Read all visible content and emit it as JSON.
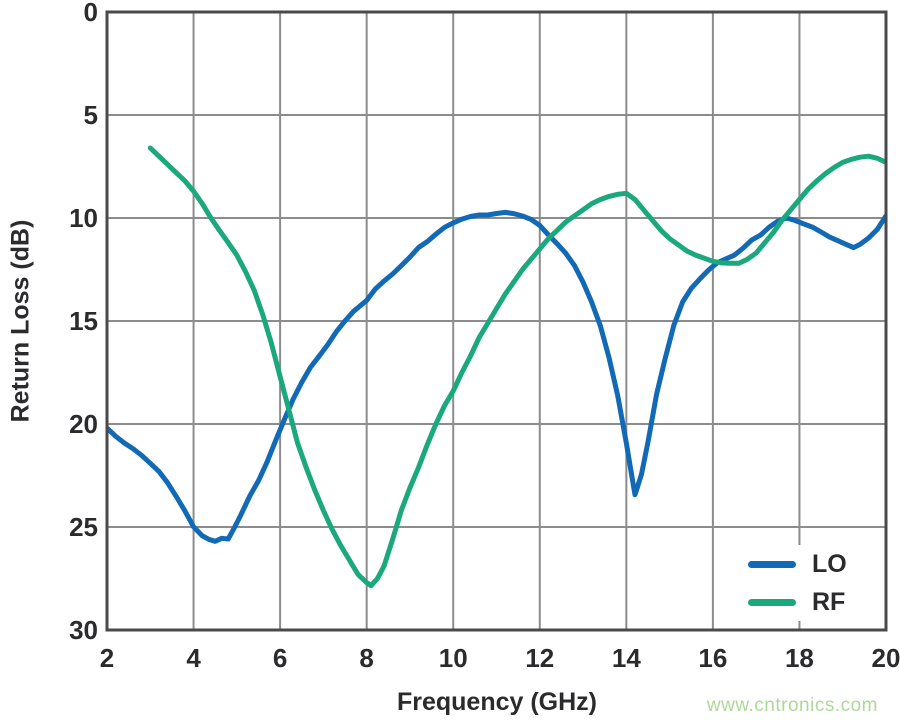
{
  "chart_data": {
    "type": "line",
    "title": "",
    "xlabel": "Frequency (GHz)",
    "ylabel": "Return Loss (dB)",
    "xlim": [
      2,
      20
    ],
    "ylim": [
      0,
      30
    ],
    "y_axis_inverted_downward": true,
    "x_ticks": [
      2,
      4,
      6,
      8,
      10,
      12,
      14,
      16,
      18,
      20
    ],
    "y_ticks": [
      0,
      5,
      10,
      15,
      20,
      25,
      30
    ],
    "grid": true,
    "legend_position": "lower right",
    "series": [
      {
        "name": "LO",
        "color": "#1269b5",
        "noisy_trace": true,
        "points": [
          [
            2.0,
            20.2
          ],
          [
            2.2,
            20.55
          ],
          [
            2.4,
            20.9
          ],
          [
            2.6,
            21.2
          ],
          [
            2.8,
            21.5
          ],
          [
            3.0,
            21.9
          ],
          [
            3.2,
            22.35
          ],
          [
            3.4,
            22.9
          ],
          [
            3.6,
            23.5
          ],
          [
            3.8,
            24.2
          ],
          [
            4.0,
            25.0
          ],
          [
            4.2,
            25.4
          ],
          [
            4.35,
            25.55
          ],
          [
            4.5,
            25.7
          ],
          [
            4.65,
            25.6
          ],
          [
            4.8,
            25.6
          ],
          [
            4.95,
            25.0
          ],
          [
            5.1,
            24.4
          ],
          [
            5.3,
            23.5
          ],
          [
            5.5,
            22.7
          ],
          [
            5.7,
            21.8
          ],
          [
            5.9,
            20.8
          ],
          [
            6.1,
            19.8
          ],
          [
            6.3,
            18.8
          ],
          [
            6.5,
            18.0
          ],
          [
            6.7,
            17.3
          ],
          [
            6.9,
            16.7
          ],
          [
            7.1,
            16.1
          ],
          [
            7.3,
            15.5
          ],
          [
            7.5,
            15.0
          ],
          [
            7.7,
            14.5
          ],
          [
            8.0,
            14.0
          ],
          [
            8.2,
            13.5
          ],
          [
            8.4,
            13.1
          ],
          [
            8.6,
            12.7
          ],
          [
            8.8,
            12.3
          ],
          [
            9.0,
            11.9
          ],
          [
            9.2,
            11.4
          ],
          [
            9.4,
            11.1
          ],
          [
            9.6,
            10.8
          ],
          [
            9.8,
            10.5
          ],
          [
            10.0,
            10.25
          ],
          [
            10.2,
            10.05
          ],
          [
            10.4,
            9.95
          ],
          [
            10.6,
            9.85
          ],
          [
            10.8,
            9.8
          ],
          [
            11.0,
            9.75
          ],
          [
            11.2,
            9.75
          ],
          [
            11.4,
            9.8
          ],
          [
            11.6,
            9.9
          ],
          [
            11.8,
            10.1
          ],
          [
            12.0,
            10.4
          ],
          [
            12.2,
            10.8
          ],
          [
            12.4,
            11.2
          ],
          [
            12.6,
            11.7
          ],
          [
            12.8,
            12.3
          ],
          [
            13.0,
            13.1
          ],
          [
            13.2,
            14.1
          ],
          [
            13.4,
            15.3
          ],
          [
            13.6,
            16.8
          ],
          [
            13.8,
            18.6
          ],
          [
            14.0,
            20.9
          ],
          [
            14.1,
            22.2
          ],
          [
            14.2,
            23.4
          ],
          [
            14.35,
            22.4
          ],
          [
            14.5,
            20.9
          ],
          [
            14.7,
            18.6
          ],
          [
            14.9,
            16.8
          ],
          [
            15.1,
            15.2
          ],
          [
            15.3,
            14.1
          ],
          [
            15.5,
            13.4
          ],
          [
            15.7,
            12.9
          ],
          [
            15.9,
            12.5
          ],
          [
            16.1,
            12.2
          ],
          [
            16.3,
            12.0
          ],
          [
            16.5,
            11.8
          ],
          [
            16.7,
            11.5
          ],
          [
            16.9,
            11.1
          ],
          [
            17.1,
            10.8
          ],
          [
            17.3,
            10.4
          ],
          [
            17.5,
            10.15
          ],
          [
            17.7,
            10.0
          ],
          [
            17.9,
            10.1
          ],
          [
            18.1,
            10.3
          ],
          [
            18.3,
            10.5
          ],
          [
            18.5,
            10.7
          ],
          [
            18.7,
            10.9
          ],
          [
            18.9,
            11.1
          ],
          [
            19.1,
            11.3
          ],
          [
            19.25,
            11.4
          ],
          [
            19.4,
            11.25
          ],
          [
            19.6,
            11.0
          ],
          [
            19.8,
            10.6
          ],
          [
            20.0,
            9.9
          ]
        ]
      },
      {
        "name": "RF",
        "color": "#1aa87c",
        "noisy_trace": false,
        "points": [
          [
            3.0,
            6.6
          ],
          [
            3.2,
            7.0
          ],
          [
            3.4,
            7.4
          ],
          [
            3.6,
            7.8
          ],
          [
            3.8,
            8.2
          ],
          [
            4.0,
            8.7
          ],
          [
            4.2,
            9.3
          ],
          [
            4.4,
            10.0
          ],
          [
            4.6,
            10.6
          ],
          [
            4.8,
            11.2
          ],
          [
            5.0,
            11.8
          ],
          [
            5.2,
            12.6
          ],
          [
            5.4,
            13.5
          ],
          [
            5.6,
            14.7
          ],
          [
            5.8,
            16.1
          ],
          [
            6.0,
            17.7
          ],
          [
            6.2,
            19.3
          ],
          [
            6.4,
            20.9
          ],
          [
            6.6,
            22.1
          ],
          [
            6.8,
            23.2
          ],
          [
            7.0,
            24.2
          ],
          [
            7.2,
            25.1
          ],
          [
            7.4,
            25.9
          ],
          [
            7.6,
            26.6
          ],
          [
            7.8,
            27.3
          ],
          [
            8.0,
            27.7
          ],
          [
            8.1,
            27.85
          ],
          [
            8.25,
            27.5
          ],
          [
            8.4,
            26.9
          ],
          [
            8.6,
            25.6
          ],
          [
            8.8,
            24.2
          ],
          [
            9.0,
            23.1
          ],
          [
            9.2,
            22.1
          ],
          [
            9.4,
            21.0
          ],
          [
            9.6,
            20.0
          ],
          [
            9.8,
            19.1
          ],
          [
            10.0,
            18.4
          ],
          [
            10.2,
            17.5
          ],
          [
            10.4,
            16.7
          ],
          [
            10.6,
            15.8
          ],
          [
            10.8,
            15.1
          ],
          [
            11.0,
            14.4
          ],
          [
            11.2,
            13.7
          ],
          [
            11.4,
            13.1
          ],
          [
            11.6,
            12.5
          ],
          [
            11.8,
            12.0
          ],
          [
            12.0,
            11.5
          ],
          [
            12.2,
            11.0
          ],
          [
            12.4,
            10.6
          ],
          [
            12.6,
            10.2
          ],
          [
            12.8,
            9.9
          ],
          [
            13.0,
            9.6
          ],
          [
            13.2,
            9.3
          ],
          [
            13.4,
            9.1
          ],
          [
            13.6,
            8.95
          ],
          [
            13.8,
            8.85
          ],
          [
            14.0,
            8.8
          ],
          [
            14.2,
            9.1
          ],
          [
            14.4,
            9.6
          ],
          [
            14.6,
            10.1
          ],
          [
            14.8,
            10.6
          ],
          [
            15.0,
            11.0
          ],
          [
            15.2,
            11.3
          ],
          [
            15.4,
            11.6
          ],
          [
            15.6,
            11.8
          ],
          [
            15.8,
            11.95
          ],
          [
            16.0,
            12.1
          ],
          [
            16.2,
            12.18
          ],
          [
            16.4,
            12.2
          ],
          [
            16.6,
            12.2
          ],
          [
            16.8,
            12.0
          ],
          [
            17.0,
            11.7
          ],
          [
            17.2,
            11.2
          ],
          [
            17.4,
            10.7
          ],
          [
            17.6,
            10.1
          ],
          [
            17.8,
            9.6
          ],
          [
            18.0,
            9.1
          ],
          [
            18.2,
            8.6
          ],
          [
            18.4,
            8.2
          ],
          [
            18.6,
            7.85
          ],
          [
            18.8,
            7.55
          ],
          [
            19.0,
            7.3
          ],
          [
            19.2,
            7.15
          ],
          [
            19.4,
            7.05
          ],
          [
            19.6,
            7.0
          ],
          [
            19.8,
            7.1
          ],
          [
            20.0,
            7.3
          ]
        ]
      }
    ]
  },
  "watermark": {
    "text": "www.cntronics.com",
    "color": "#aed89b"
  },
  "style": {
    "grid_color": "#8c8c8c",
    "frame_color": "#4a4a4c",
    "text_color": "#2b2b2e",
    "plot_background": "#ffffff"
  }
}
